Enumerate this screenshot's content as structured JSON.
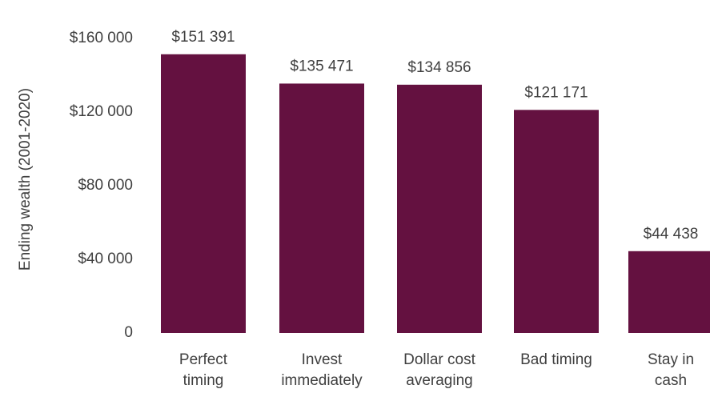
{
  "chart_data": {
    "type": "bar",
    "categories": [
      [
        "Perfect",
        "timing"
      ],
      [
        "Invest",
        "immediately"
      ],
      [
        "Dollar cost",
        "averaging"
      ],
      [
        "Bad timing"
      ],
      [
        "Stay in",
        "cash"
      ]
    ],
    "values": [
      151391,
      135471,
      134856,
      121171,
      44438
    ],
    "data_labels": [
      "$151 391",
      "$135 471",
      "$134 856",
      "$121 171",
      "$44 438"
    ],
    "ylabel": "Ending wealth (2001-2020)",
    "xlabel": "",
    "ylim": [
      0,
      160000
    ],
    "yticks": [
      {
        "value": 0,
        "label": "0"
      },
      {
        "value": 40000,
        "label": "$40 000"
      },
      {
        "value": 80000,
        "label": "$80 000"
      },
      {
        "value": 120000,
        "label": "$120 000"
      },
      {
        "value": 160000,
        "label": "$160 000"
      }
    ],
    "grid": false,
    "legend": "none",
    "bar_color": "#641140"
  }
}
